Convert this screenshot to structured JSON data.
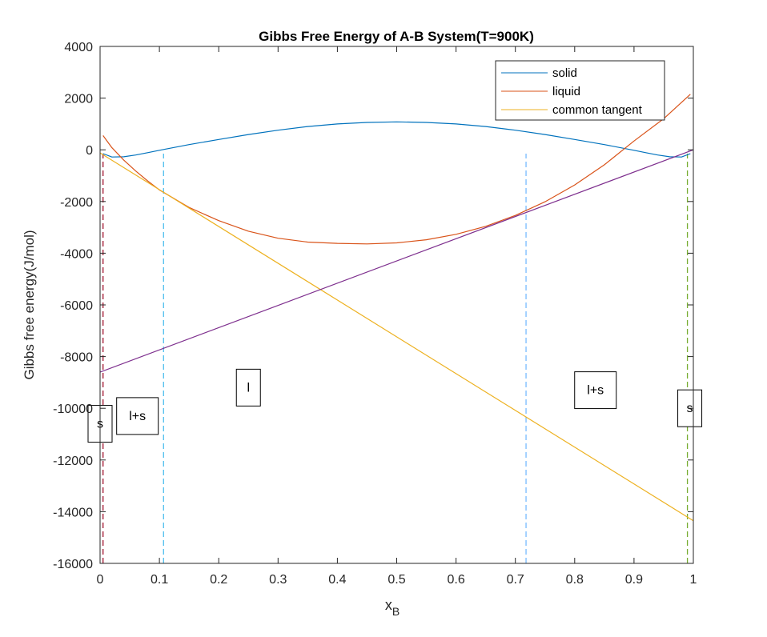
{
  "chart_data": {
    "type": "line",
    "title": "Gibbs Free Energy of A-B System(T=900K)",
    "xlabel_main": "x",
    "xlabel_sub": "B",
    "ylabel": "Gibbs free energy(J/mol)",
    "xlim": [
      0,
      1
    ],
    "ylim": [
      -16000,
      4000
    ],
    "xticks": [
      0,
      0.1,
      0.2,
      0.3,
      0.4,
      0.5,
      0.6,
      0.7,
      0.8,
      0.9,
      1
    ],
    "xtick_labels": [
      "0",
      "0.1",
      "0.2",
      "0.3",
      "0.4",
      "0.5",
      "0.6",
      "0.7",
      "0.8",
      "0.9",
      "1"
    ],
    "yticks": [
      4000,
      2000,
      0,
      -2000,
      -4000,
      -6000,
      -8000,
      -10000,
      -12000,
      -14000,
      -16000
    ],
    "ytick_labels": [
      "4000",
      "2000",
      "0",
      "-2000",
      "-4000",
      "-6000",
      "-8000",
      "-10000",
      "-12000",
      "-14000",
      "-16000"
    ],
    "grid": false,
    "legend_position": "top-right",
    "series": [
      {
        "name": "solid",
        "color": "#0072BD",
        "x": [
          0.005,
          0.02,
          0.04,
          0.06,
          0.08,
          0.1,
          0.15,
          0.2,
          0.25,
          0.3,
          0.35,
          0.4,
          0.45,
          0.5,
          0.55,
          0.6,
          0.65,
          0.7,
          0.75,
          0.8,
          0.85,
          0.9,
          0.92,
          0.94,
          0.96,
          0.98,
          0.995
        ],
        "y": [
          -150,
          -280,
          -270,
          -200,
          -110,
          -20,
          200,
          400,
          590,
          760,
          900,
          1000,
          1060,
          1080,
          1060,
          1000,
          900,
          760,
          590,
          400,
          200,
          -20,
          -110,
          -200,
          -270,
          -280,
          -150
        ]
      },
      {
        "name": "liquid",
        "color": "#D95319",
        "x": [
          0.005,
          0.02,
          0.04,
          0.06,
          0.08,
          0.1,
          0.15,
          0.2,
          0.25,
          0.3,
          0.35,
          0.4,
          0.45,
          0.5,
          0.55,
          0.6,
          0.65,
          0.7,
          0.75,
          0.8,
          0.85,
          0.9,
          0.95,
          0.995
        ],
        "y": [
          550,
          80,
          -400,
          -820,
          -1200,
          -1550,
          -2230,
          -2740,
          -3150,
          -3420,
          -3570,
          -3620,
          -3640,
          -3600,
          -3480,
          -3270,
          -2960,
          -2540,
          -2010,
          -1360,
          -580,
          340,
          1200,
          2150
        ]
      },
      {
        "name": "common tangent",
        "color": "#EDB120",
        "x": [
          0,
          1
        ],
        "y": [
          -120,
          -14350
        ]
      },
      {
        "name": "",
        "color": "#7E2F8E",
        "x": [
          0,
          1
        ],
        "y": [
          -8600,
          0
        ]
      }
    ],
    "vertical_lines": [
      {
        "x": 0.005,
        "color": "#A2142F"
      },
      {
        "x": 0.107,
        "color": "#4DBEEE"
      },
      {
        "x": 0.718,
        "color": "#77BBFF"
      },
      {
        "x": 0.99,
        "color": "#77AC30"
      }
    ],
    "annotations": [
      {
        "text": "s",
        "x": 0.0,
        "y": -10600
      },
      {
        "text": "l+s",
        "x": 0.063,
        "y": -10300
      },
      {
        "text": "l",
        "x": 0.25,
        "y": -9200
      },
      {
        "text": "l+s",
        "x": 0.835,
        "y": -9300
      },
      {
        "text": "s",
        "x": 0.994,
        "y": -10000
      }
    ]
  }
}
